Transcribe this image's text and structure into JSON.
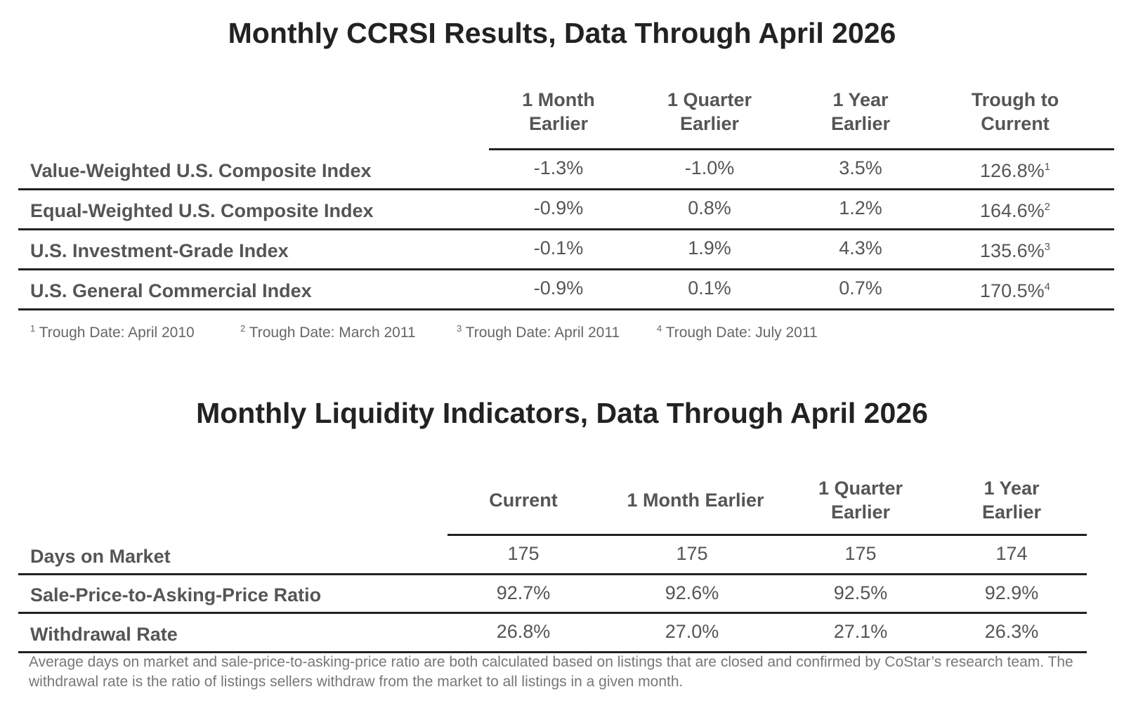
{
  "ccrsi": {
    "title": "Monthly CCRSI Results, Data Through April 2026",
    "columns": [
      {
        "line1": "1 Month",
        "line2": "Earlier"
      },
      {
        "line1": "1 Quarter",
        "line2": "Earlier"
      },
      {
        "line1": "1 Year",
        "line2": "Earlier"
      },
      {
        "line1": "Trough to",
        "line2": "Current"
      }
    ],
    "rows": [
      {
        "label": "Value-Weighted U.S. Composite Index",
        "values": [
          "-1.3%",
          "-1.0%",
          "3.5%",
          "126.8%"
        ],
        "note": "1"
      },
      {
        "label": "Equal-Weighted U.S. Composite Index",
        "values": [
          "-0.9%",
          "0.8%",
          "1.2%",
          "164.6%"
        ],
        "note": "2"
      },
      {
        "label": "U.S. Investment-Grade Index",
        "values": [
          "-0.1%",
          "1.9%",
          "4.3%",
          "135.6%"
        ],
        "note": "3"
      },
      {
        "label": "U.S. General Commercial Index",
        "values": [
          "-0.9%",
          "0.1%",
          "0.7%",
          "170.5%"
        ],
        "note": "4"
      }
    ],
    "footnotes": [
      {
        "mark": "1",
        "text": " Trough Date: April 2010"
      },
      {
        "mark": "2",
        "text": " Trough Date: March 2011"
      },
      {
        "mark": "3",
        "text": " Trough Date: April 2011"
      },
      {
        "mark": "4",
        "text": " Trough Date: July 2011"
      }
    ]
  },
  "liquidity": {
    "title": "Monthly Liquidity Indicators, Data Through April 2026",
    "columns": [
      {
        "line1": "Current",
        "line2": ""
      },
      {
        "line1": "1 Month Earlier",
        "line2": ""
      },
      {
        "line1": "1 Quarter",
        "line2": "Earlier"
      },
      {
        "line1": "1 Year",
        "line2": "Earlier"
      }
    ],
    "rows": [
      {
        "label": "Days on Market",
        "values": [
          "175",
          "175",
          "175",
          "174"
        ]
      },
      {
        "label": "Sale-Price-to-Asking-Price Ratio",
        "values": [
          "92.7%",
          "92.6%",
          "92.5%",
          "92.9%"
        ]
      },
      {
        "label": "Withdrawal Rate",
        "values": [
          "26.8%",
          "27.0%",
          "27.1%",
          "26.3%"
        ]
      }
    ],
    "note": "Average days on market and sale-price-to-asking-price ratio are both calculated based on listings that are closed and confirmed by CoStar’s research team. The withdrawal rate is the ratio of listings sellers withdraw from the market to all listings in a given month."
  }
}
